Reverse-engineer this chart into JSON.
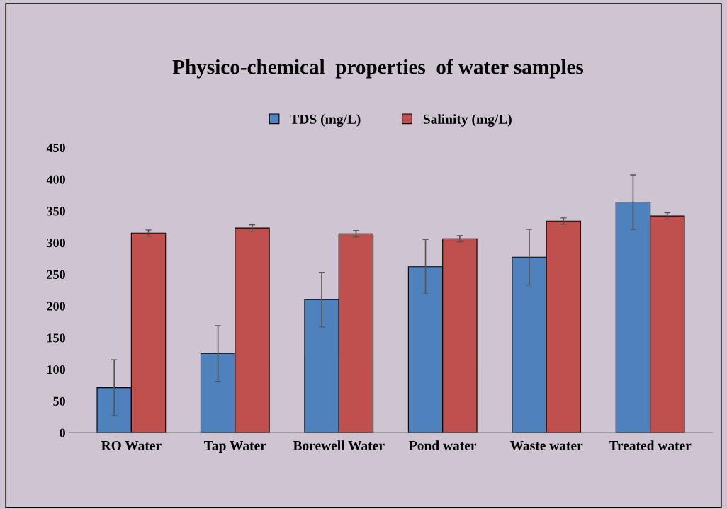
{
  "chart_data": {
    "type": "bar",
    "title": "Physico-chemical  properties  of water samples",
    "categories": [
      "RO Water",
      "Tap Water",
      "Borewell Water",
      "Pond water",
      "Waste water",
      "Treated water"
    ],
    "series": [
      {
        "name": "TDS (mg/L)",
        "color": "#4f81bd",
        "values": [
          71,
          125,
          210,
          262,
          277,
          364
        ],
        "errors": [
          44,
          44,
          43,
          43,
          44,
          43
        ]
      },
      {
        "name": "Salinity (mg/L)",
        "color": "#c0504d",
        "values": [
          315,
          323,
          314,
          306,
          334,
          342
        ],
        "errors": [
          5,
          5,
          5,
          5,
          5,
          5
        ]
      }
    ],
    "ylim": [
      0,
      450
    ],
    "yticks": [
      0,
      50,
      100,
      150,
      200,
      250,
      300,
      350,
      400,
      450
    ],
    "grid": false,
    "legend": "top"
  }
}
